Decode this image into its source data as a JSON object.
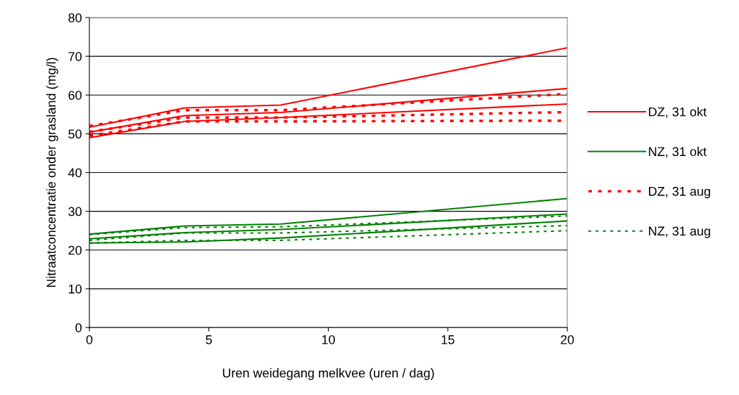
{
  "chart_data": {
    "type": "line",
    "xlabel": "Uren weidegang melkvee (uren / dag)",
    "ylabel": "Nitraatconcentratie onder grasland (mg/l)",
    "x": [
      0,
      4,
      8,
      20
    ],
    "xlim": [
      0,
      20
    ],
    "xticks": [
      0,
      5,
      10,
      15,
      20
    ],
    "ylim": [
      0,
      80
    ],
    "yticks": [
      0,
      10,
      20,
      30,
      40,
      50,
      60,
      70,
      80
    ],
    "grid": "y",
    "legend": "right",
    "marker": "none",
    "series": [
      {
        "name": "DZ, 31 okt",
        "color": "#ff0000",
        "line_style": "solid",
        "values": [
          51.7,
          56.7,
          57.4,
          72.2
        ]
      },
      {
        "color": "#ff0000",
        "line_style": "solid",
        "values": [
          50.4,
          54.7,
          55.5,
          61.7
        ]
      },
      {
        "color": "#ff0000",
        "line_style": "solid",
        "values": [
          49.0,
          53.2,
          54.2,
          57.7
        ]
      },
      {
        "name": "NZ, 31 okt",
        "color": "#008000",
        "line_style": "solid",
        "values": [
          24.1,
          26.2,
          26.7,
          33.3
        ]
      },
      {
        "color": "#008000",
        "line_style": "solid",
        "values": [
          22.9,
          24.5,
          25.3,
          29.3
        ]
      },
      {
        "color": "#008000",
        "line_style": "solid",
        "values": [
          21.8,
          22.1,
          23.1,
          27.5
        ]
      },
      {
        "name": "DZ, 31 aug",
        "color": "#ff0000",
        "line_style": "dotted",
        "values": [
          52.0,
          56.1,
          56.1,
          60.3
        ]
      },
      {
        "color": "#ff0000",
        "line_style": "dotted",
        "values": [
          50.5,
          54.2,
          54.2,
          55.6
        ]
      },
      {
        "color": "#ff0000",
        "line_style": "dotted",
        "values": [
          49.5,
          53.2,
          53.2,
          53.4
        ]
      },
      {
        "name": "NZ, 31 aug",
        "color": "#008000",
        "line_style": "dashed",
        "values": [
          24.0,
          25.8,
          26.0,
          28.8
        ]
      },
      {
        "color": "#008000",
        "line_style": "dashed",
        "values": [
          22.5,
          24.4,
          24.4,
          26.3
        ]
      },
      {
        "color": "#008000",
        "line_style": "dashed",
        "values": [
          21.8,
          22.5,
          22.5,
          25.0
        ]
      }
    ]
  }
}
